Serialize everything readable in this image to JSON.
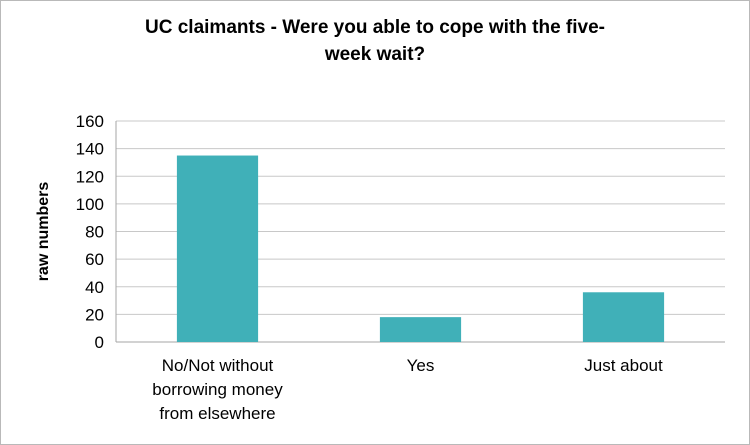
{
  "chart_data": {
    "type": "bar",
    "title_lines": [
      "UC claimants - Were you able to cope with the five-",
      "week wait?"
    ],
    "ylabel": "raw numbers",
    "xlabel": "",
    "categories": [
      [
        "No/Not without",
        "borrowing money",
        "from elsewhere"
      ],
      [
        "Yes"
      ],
      [
        "Just about"
      ]
    ],
    "values": [
      135,
      18,
      36
    ],
    "ylim": [
      0,
      160
    ],
    "yticks": [
      0,
      20,
      40,
      60,
      80,
      100,
      120,
      140,
      160
    ],
    "grid": true,
    "legend": "none",
    "bar_color": "#40b0b8"
  }
}
